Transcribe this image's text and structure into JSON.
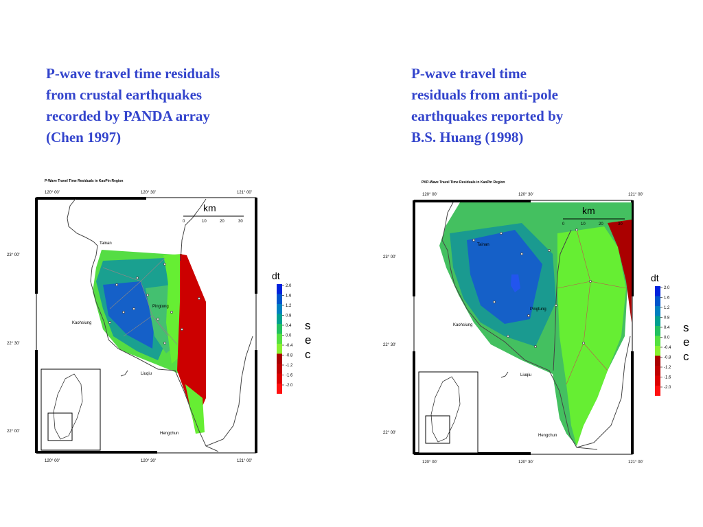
{
  "captions": {
    "left": [
      "P-wave travel time residuals",
      "from crustal earthquakes",
      "recorded by PANDA array",
      "(Chen 1997)"
    ],
    "right": [
      "P-wave travel time",
      "residuals from anti-pole",
      "earthquakes reported by",
      "B.S. Huang (1998)"
    ]
  },
  "maps": [
    {
      "id": "left",
      "title": "P-Wave Travel Time Residuals in KaoPin Region",
      "top_ticks": [
        "120° 00'",
        "120° 30'",
        "121° 00'"
      ],
      "bottom_ticks": [
        "120° 00'",
        "120° 30'",
        "121° 00'"
      ],
      "lat_ticks": [
        "23° 00'",
        "22° 30'",
        "22° 00'"
      ],
      "scale_unit": "km",
      "scale_ticks": [
        "0",
        "10",
        "20",
        "30"
      ],
      "places": [
        "Tainan",
        "Kaohsiung",
        "Pingtung",
        "Liuqiu",
        "Hengchun"
      ]
    },
    {
      "id": "right",
      "title": "PKP-Wave Travel Time Residuals in KaoPin Region",
      "top_ticks": [
        "120° 00'",
        "120° 30'",
        "121° 00'"
      ],
      "bottom_ticks": [
        "120° 00'",
        "120° 30'",
        "121° 00'"
      ],
      "lat_ticks": [
        "23° 00'",
        "22° 30'",
        "22° 00'"
      ],
      "scale_unit": "km",
      "scale_ticks": [
        "0",
        "10",
        "20",
        "30"
      ],
      "places": [
        "Tainan",
        "Kaohsiung",
        "Pingtung",
        "Liuqiu",
        "Hengchun"
      ]
    }
  ],
  "legends": [
    {
      "id": "left",
      "label": "dt",
      "unit": [
        "s",
        "e",
        "c"
      ],
      "ticks": [
        "2.0",
        "1.6",
        "1.2",
        "0.8",
        "0.4",
        "0.0",
        "-0.4",
        "-0.8",
        "-1.2",
        "-1.6",
        "-2.0"
      ],
      "colors": [
        "#0022dd",
        "#0055cc",
        "#0080c0",
        "#00a090",
        "#22c060",
        "#55e040",
        "#88f030",
        "#aa0000",
        "#c00000",
        "#dd0000",
        "#ff1010"
      ]
    },
    {
      "id": "right",
      "label": "dt",
      "unit": [
        "s",
        "e",
        "c"
      ],
      "ticks": [
        "2.0",
        "1.6",
        "1.2",
        "0.8",
        "0.4",
        "0.0",
        "-0.4",
        "-0.8",
        "-1.2",
        "-1.6",
        "-2.0"
      ],
      "colors": [
        "#0022dd",
        "#0055cc",
        "#0080c0",
        "#00a090",
        "#22c060",
        "#55e040",
        "#88f030",
        "#aa0000",
        "#c00000",
        "#dd0000",
        "#ff1010"
      ]
    }
  ],
  "colors": {
    "caption": "#3344cc",
    "blue": "#1560c8",
    "teal": "#1a9a90",
    "green": "#44c060",
    "lime": "#66ee33",
    "red": "#cc0000"
  }
}
